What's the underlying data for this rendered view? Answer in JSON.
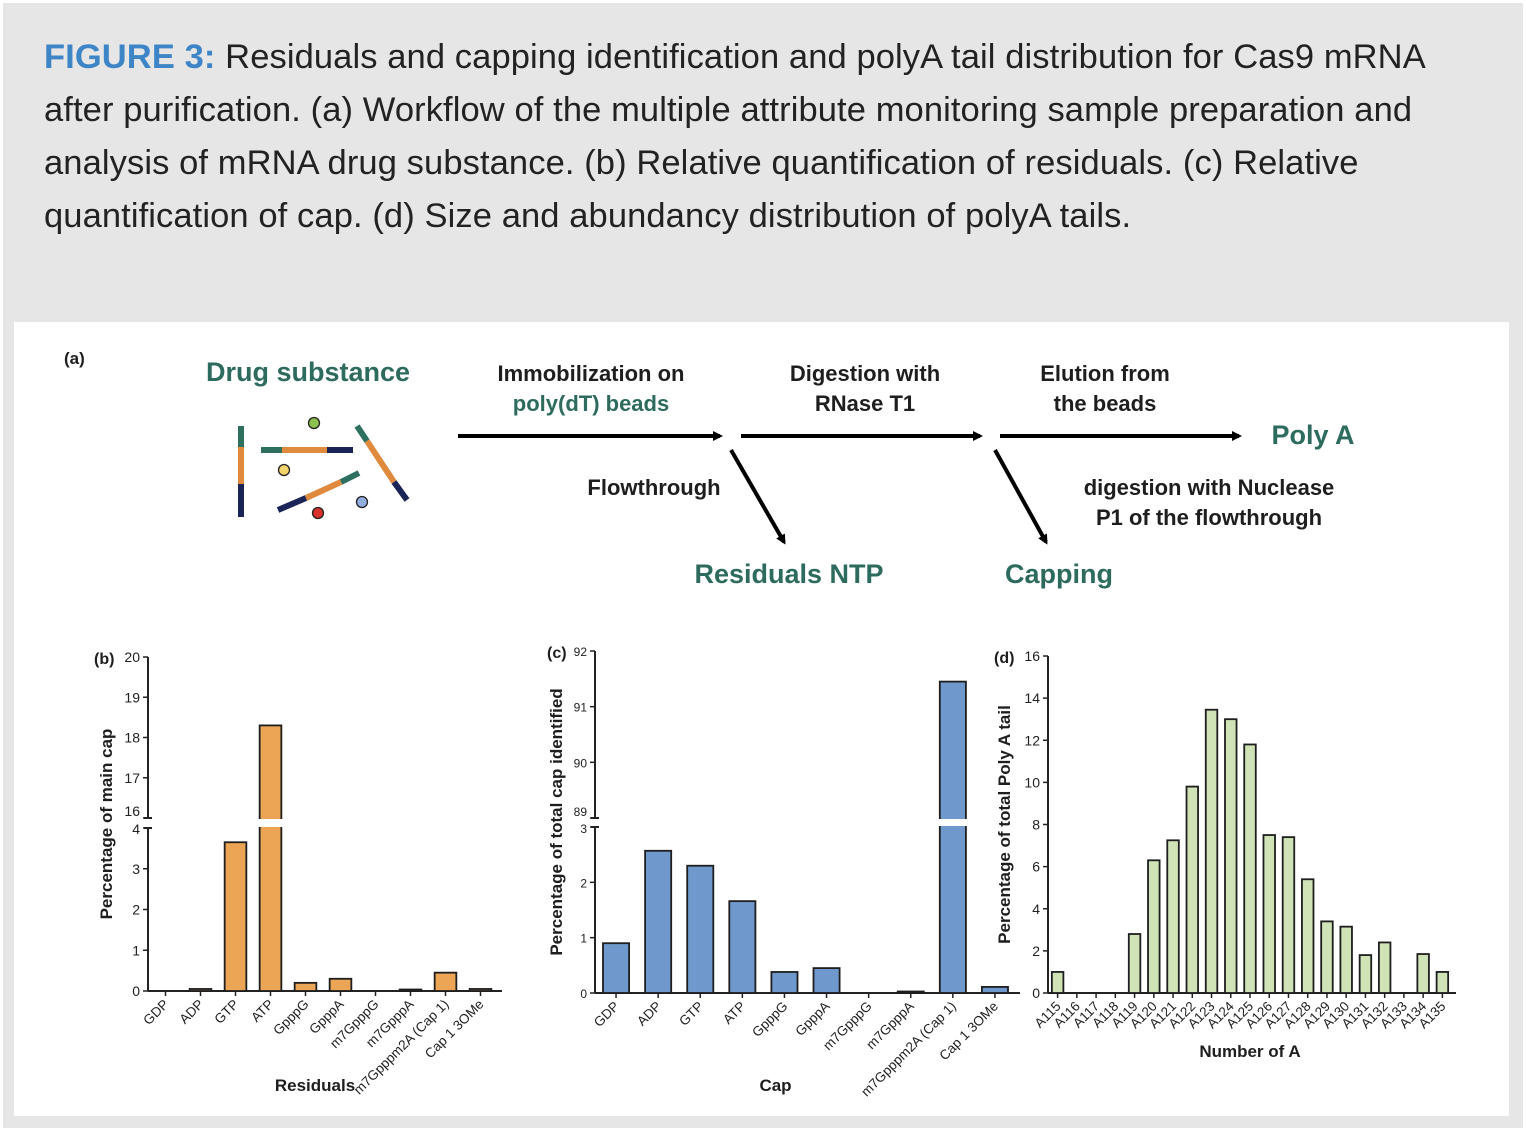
{
  "caption": {
    "lead": "FIGURE 3:",
    "text": " Residuals and capping identification and polyA tail distribution for Cas9 mRNA after purification. (a) Workflow of the multiple attribute monitoring sample preparation and analysis of mRNA drug substance. (b) Relative quantification of residuals. (c) Relative quantification of cap. (d) Size and abundancy distribution of polyA tails."
  },
  "workflow": {
    "panel_label": "(a)",
    "drug_substance": "Drug substance",
    "step1_line1": "Immobilization on",
    "step1_line2": "poly(dT) beads",
    "step2_line1": "Digestion with",
    "step2_line2": "RNase T1",
    "step3_line1": "Elution from",
    "step3_line2": "the beads",
    "poly_a": "Poly A",
    "flowthrough": "Flowthrough",
    "residuals_ntp": "Residuals NTP",
    "nuclease_line1": "digestion with Nuclease",
    "nuclease_line2": "P1 of the flowthrough",
    "capping": "Capping"
  },
  "colors": {
    "caption_lead": "#3d85c6",
    "workflow_green": "#2d6b5e",
    "bar_b": "#eba554",
    "bar_c": "#6f98cc",
    "bar_d": "#cfe3b7",
    "rna_teal": "#2d7060",
    "rna_orange": "#e08a3e",
    "rna_navy": "#1b2456"
  },
  "chart_data": [
    {
      "panel": "(b)",
      "type": "bar",
      "title": "",
      "xlabel": "Residuals",
      "ylabel": "Percentage of main cap",
      "broken_axis": true,
      "ylim_lower": [
        0,
        4
      ],
      "ylim_upper": [
        16,
        20
      ],
      "yticks_lower": [
        "0",
        "1",
        "2",
        "3",
        "4"
      ],
      "yticks_upper": [
        "16",
        "17",
        "18",
        "19",
        "20"
      ],
      "categories": [
        "GDP",
        "ADP",
        "GTP",
        "ATP",
        "GpppG",
        "GpppA",
        "m7GpppG",
        "m7GpppA",
        "m7Gpppm2A (Cap 1)",
        "Cap 1 3OMe"
      ],
      "values": [
        0,
        0.05,
        3.65,
        18.3,
        0.2,
        0.3,
        0,
        0.01,
        0.45,
        0.05
      ]
    },
    {
      "panel": "(c)",
      "type": "bar",
      "title": "",
      "xlabel": "Cap",
      "ylabel": "Percentage of total cap identified",
      "broken_axis": true,
      "ylim_lower": [
        0,
        3
      ],
      "ylim_upper": [
        89,
        92
      ],
      "yticks_lower": [
        "0",
        "1",
        "2",
        "3"
      ],
      "yticks_upper": [
        "89",
        "90",
        "91",
        "92"
      ],
      "categories": [
        "GDP",
        "ADP",
        "GTP",
        "ATP",
        "GpppG",
        "GpppA",
        "m7GpppG",
        "m7GpppA",
        "m7Gpppm2A (Cap 1)",
        "Cap 1 3OMe"
      ],
      "values": [
        0.9,
        2.57,
        2.3,
        1.66,
        0.38,
        0.45,
        0,
        0.01,
        91.45,
        0.11
      ]
    },
    {
      "panel": "(d)",
      "type": "bar",
      "title": "",
      "xlabel": "Number of A",
      "ylabel": "Percentage of total Poly A tail",
      "broken_axis": false,
      "ylim": [
        0,
        16
      ],
      "yticks": [
        "0",
        "2",
        "4",
        "6",
        "8",
        "10",
        "12",
        "14",
        "16"
      ],
      "categories": [
        "A115",
        "A116",
        "A117",
        "A118",
        "A119",
        "A120",
        "A121",
        "A122",
        "A123",
        "A124",
        "A125",
        "A126",
        "A127",
        "A128",
        "A129",
        "A130",
        "A131",
        "A132",
        "A133",
        "A134",
        "A135"
      ],
      "values": [
        1.0,
        0,
        0,
        0,
        2.8,
        6.3,
        7.25,
        9.8,
        13.45,
        13.0,
        11.8,
        7.5,
        7.4,
        5.4,
        3.4,
        3.15,
        1.8,
        2.4,
        0,
        1.85,
        1.0
      ]
    }
  ]
}
